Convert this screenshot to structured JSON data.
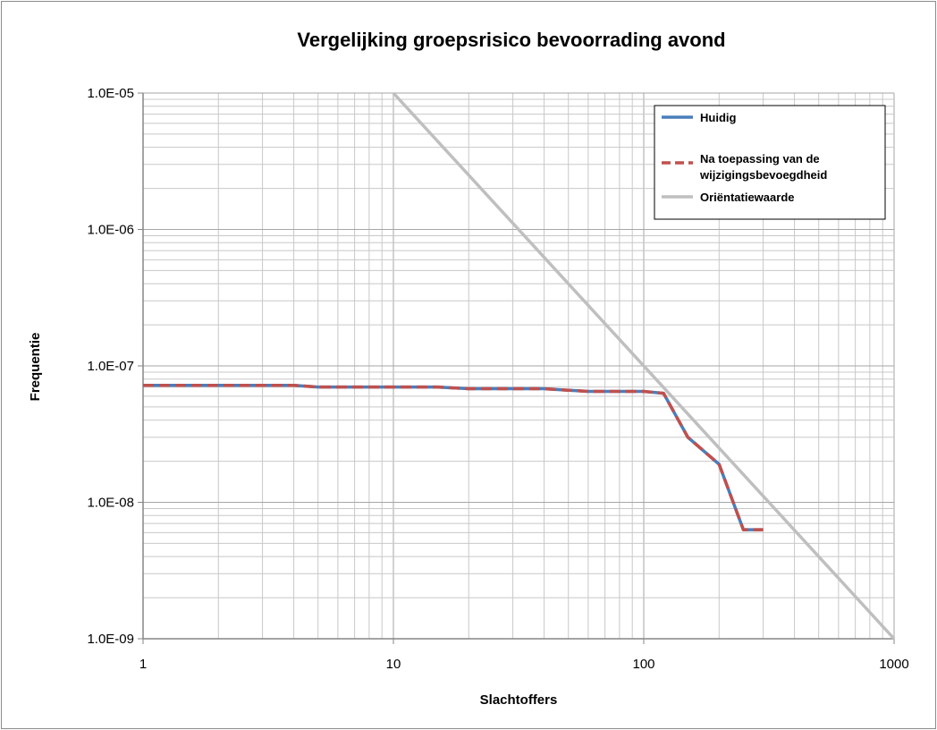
{
  "chart_data": {
    "type": "line",
    "title": "Vergelijking groepsrisico bevoorrading avond",
    "xlabel": "Slachtoffers",
    "ylabel": "Frequentie",
    "x_scale": "log",
    "y_scale": "log",
    "xlim": [
      1,
      1000
    ],
    "ylim": [
      1e-09,
      1e-05
    ],
    "grid": true,
    "legend_position": "top-right",
    "x_tick_labels": [
      "1",
      "10",
      "100",
      "1000"
    ],
    "y_tick_labels": [
      "1.0E-05",
      "1.0E-06",
      "1.0E-07",
      "1.0E-08",
      "1.0E-09"
    ],
    "series": [
      {
        "name": "Huidig",
        "color": "#4a7ebb",
        "dash": "solid",
        "x": [
          1,
          2,
          3,
          4,
          5,
          7,
          10,
          15,
          20,
          30,
          40,
          60,
          80,
          100,
          120,
          150,
          200,
          250,
          300
        ],
        "y": [
          7.2e-08,
          7.2e-08,
          7.2e-08,
          7.2e-08,
          7e-08,
          7e-08,
          7e-08,
          7e-08,
          6.8e-08,
          6.8e-08,
          6.8e-08,
          6.5e-08,
          6.5e-08,
          6.5e-08,
          6.3e-08,
          3e-08,
          1.9e-08,
          6.3e-09,
          6.3e-09
        ]
      },
      {
        "name": "Na toepassing van de wijzigingsbevoegdheid",
        "name_lines": [
          "Na toepassing van de",
          "wijzigingsbevoegdheid"
        ],
        "color": "#c0504d",
        "dash": "dashed",
        "x": [
          1,
          2,
          3,
          4,
          5,
          7,
          10,
          15,
          20,
          30,
          40,
          60,
          80,
          100,
          120,
          150,
          200,
          250,
          300
        ],
        "y": [
          7.2e-08,
          7.2e-08,
          7.2e-08,
          7.2e-08,
          7e-08,
          7e-08,
          7e-08,
          7e-08,
          6.8e-08,
          6.8e-08,
          6.8e-08,
          6.5e-08,
          6.5e-08,
          6.5e-08,
          6.3e-08,
          3e-08,
          1.9e-08,
          6.3e-09,
          6.3e-09
        ]
      },
      {
        "name": "Oriëntatiewaarde",
        "color": "#bfbfbf",
        "dash": "solid",
        "x": [
          10,
          1000
        ],
        "y": [
          1e-05,
          1e-09
        ]
      }
    ]
  }
}
